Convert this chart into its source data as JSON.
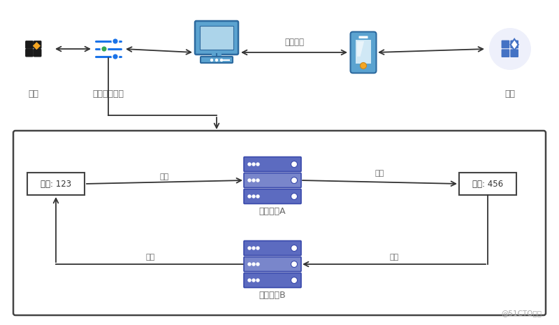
{
  "bg_color": "#ffffff",
  "server_fill": "#5c6bc0",
  "server_border": "#3949ab",
  "server_mid_fill": "#7986cb",
  "arrow_color": "#333333",
  "text_color": "#666666",
  "box_border": "#444444",
  "blue_circle_bg": "#eef0fb",
  "computer_body": "#5ba3d0",
  "computer_screen": "#acd4ea",
  "computer_dark": "#2d6a9f",
  "phone_body": "#5ba3d0",
  "phone_screen": "#b8d9ef",
  "watermark": "@51CTO博客",
  "labels": {
    "app_left": "应用",
    "proxy": "其它协议代理",
    "other_protocol": "其它协议",
    "app_right": "应用",
    "port123": "端口: 123",
    "port456": "端口: 456",
    "service_a": "监听服务A",
    "service_b": "监听服务B",
    "listen_a": "监听",
    "forward_a": "转发",
    "listen_b": "监听",
    "forward_b": "转发"
  }
}
